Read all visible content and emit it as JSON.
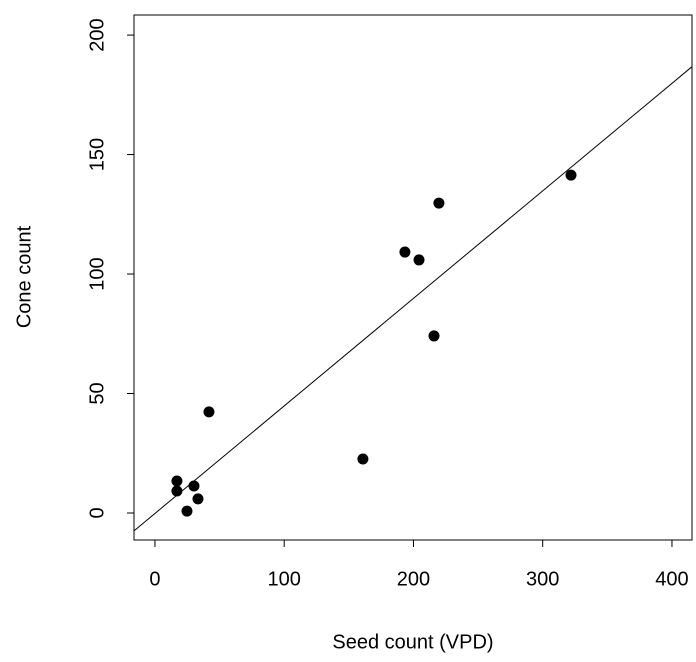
{
  "chart_data": {
    "type": "scatter",
    "x_label": "Seed count (VPD)",
    "y_label": "Cone count",
    "x": [
      17,
      17,
      24.8,
      30.2,
      33.3,
      41.8,
      160.9,
      193.4,
      204.3,
      215.9,
      219.7,
      321.9
    ],
    "values": [
      13.4,
      9.2,
      0.8,
      11.3,
      5.9,
      42.3,
      22.6,
      109.2,
      105.9,
      74.1,
      129.7,
      141.4
    ],
    "color": "#000000",
    "fit": {
      "intercept": -0.2,
      "slope": 0.45
    },
    "xlim": [
      -16.2,
      415.5
    ],
    "ylim": [
      -11.3,
      208.4
    ],
    "xticks": [
      0,
      100,
      200,
      300,
      400
    ],
    "yticks": [
      0,
      50,
      100,
      150,
      200
    ]
  }
}
